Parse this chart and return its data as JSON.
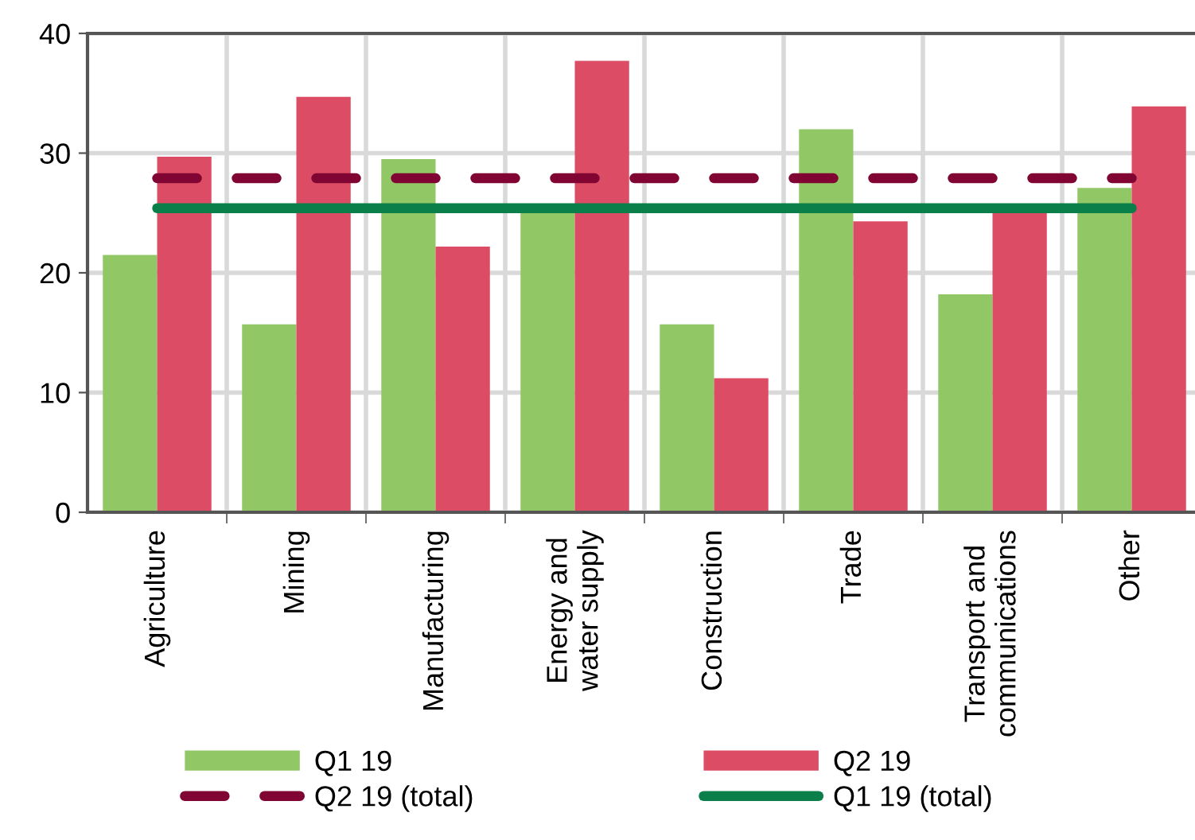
{
  "chart_data": {
    "type": "bar",
    "categories": [
      "Agriculture",
      "Mining",
      "Manufacturing",
      "Energy and\nwater supply",
      "Construction",
      "Trade",
      "Transport and\ncommunications",
      "Other"
    ],
    "series": [
      {
        "name": "Q1 19",
        "color": "#92c765",
        "values": [
          21.5,
          15.7,
          29.5,
          25.4,
          15.7,
          32.0,
          18.2,
          27.1
        ]
      },
      {
        "name": "Q2 19",
        "color": "#dc4c65",
        "values": [
          29.7,
          34.7,
          22.2,
          37.7,
          11.2,
          24.3,
          25.1,
          33.9
        ]
      },
      {
        "name": "Q2 19 (total)",
        "type": "line",
        "line_style": "dashed",
        "color": "#800532",
        "values": [
          27.9,
          27.9,
          27.9,
          27.9,
          27.9,
          27.9,
          27.9,
          27.9
        ]
      },
      {
        "name": "Q1 19 (total)",
        "type": "line",
        "line_style": "solid",
        "color": "#0b7f49",
        "values": [
          25.4,
          25.4,
          25.4,
          25.4,
          25.4,
          25.4,
          25.4,
          25.4
        ]
      }
    ],
    "ylim": [
      0,
      40
    ],
    "yticks": [
      0,
      10,
      20,
      30,
      40
    ],
    "grid": true,
    "legend": "bottom"
  }
}
